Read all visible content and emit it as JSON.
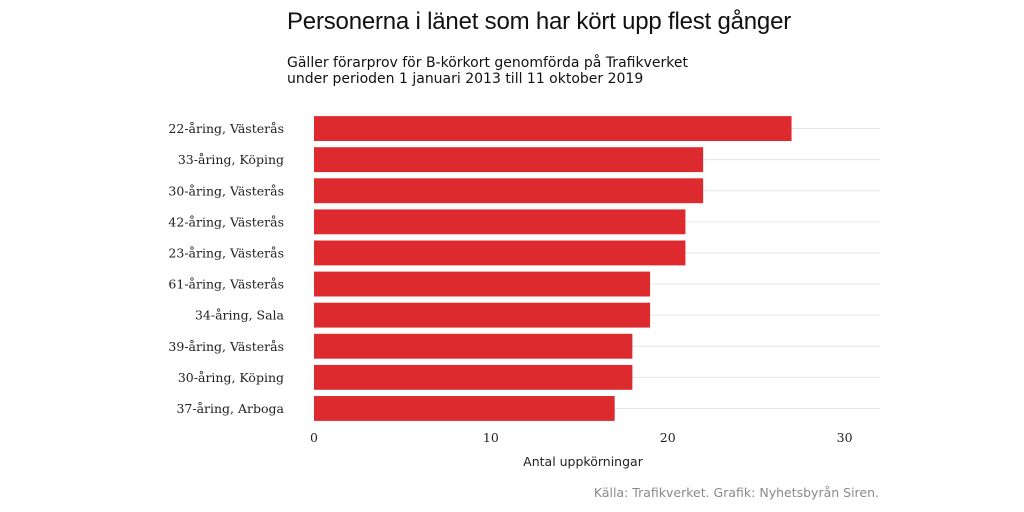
{
  "chart_data": {
    "type": "bar",
    "orientation": "horizontal",
    "title": "Personerna i länet som har kört upp flest gånger",
    "subtitle_line1": "Gäller förarprov för B-körkort genomförda på Trafikverket",
    "subtitle_line2": "under perioden 1 januari 2013 till 11 oktober 2019",
    "categories": [
      "22-åring, Västerås",
      "33-åring, Köping",
      "30-åring, Västerås",
      "42-åring, Västerås",
      "23-åring, Västerås",
      "61-åring, Västerås",
      "34-åring, Sala",
      "39-åring, Västerås",
      "30-åring, Köping",
      "37-åring, Arboga"
    ],
    "values": [
      27,
      22,
      22,
      21,
      21,
      19,
      19,
      18,
      18,
      17
    ],
    "xlabel": "Antal uppkörningar",
    "ylabel": "",
    "xlim": [
      0,
      32
    ],
    "xticks": [
      0,
      10,
      20,
      30
    ],
    "grid": true,
    "bar_color": "#dc2a2f",
    "caption": "Källa: Trafikverket. Grafik: Nyhetsbyrån Siren."
  }
}
